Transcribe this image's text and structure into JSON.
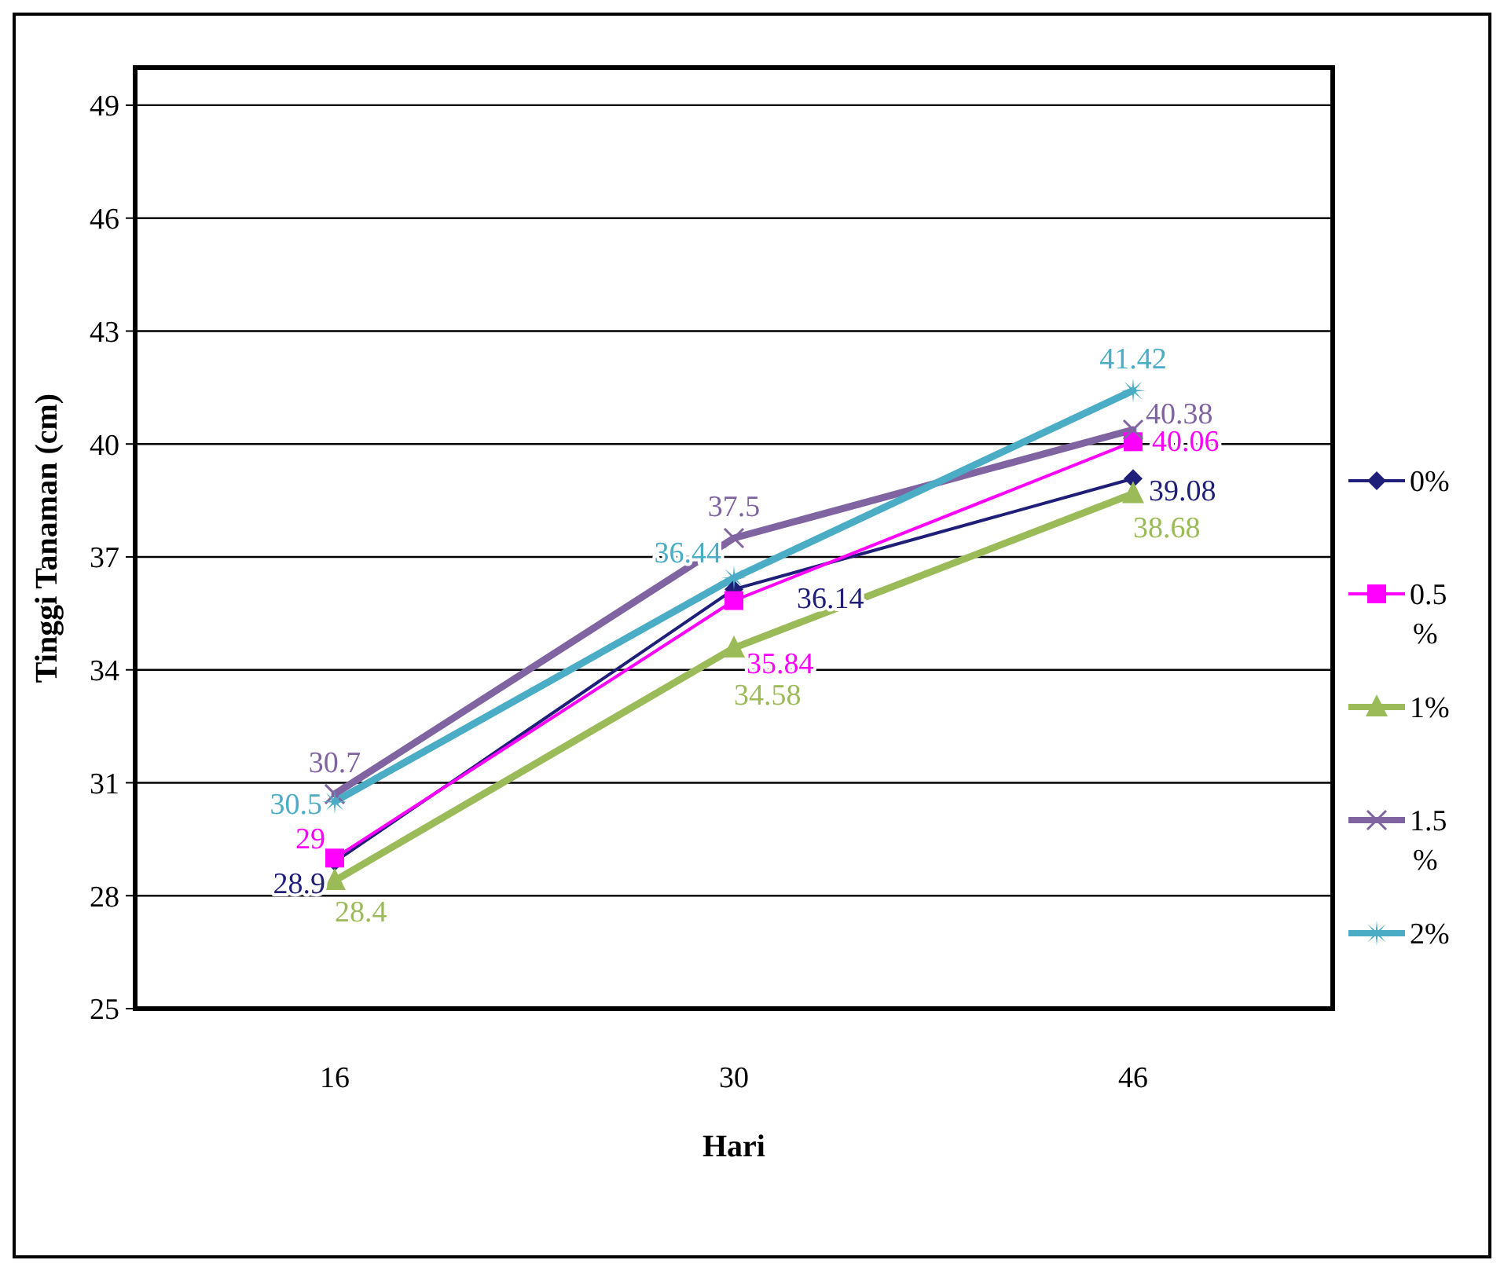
{
  "chart_data": {
    "type": "line",
    "xlabel": "Hari",
    "ylabel": "Tinggi Tanaman (cm)",
    "categories": [
      "16",
      "30",
      "46"
    ],
    "series": [
      {
        "name": "0%",
        "color": "#1f1f7a",
        "marker": "diamond",
        "values": [
          28.9,
          36.14,
          39.08
        ]
      },
      {
        "name": "0.5 %",
        "color": "#ff00ff",
        "marker": "square",
        "values": [
          29,
          35.84,
          40.06
        ]
      },
      {
        "name": "1%",
        "color": "#9bbb59",
        "marker": "triangle",
        "values": [
          28.4,
          34.58,
          38.68
        ]
      },
      {
        "name": "1.5 %",
        "color": "#8064a2",
        "marker": "cross",
        "values": [
          30.7,
          37.5,
          40.38
        ]
      },
      {
        "name": "2%",
        "color": "#4bacc6",
        "marker": "star",
        "values": [
          30.5,
          36.44,
          41.42
        ]
      }
    ],
    "ylim": [
      25,
      50
    ],
    "yticks": [
      25,
      28,
      31,
      34,
      37,
      40,
      43,
      46,
      49
    ],
    "grid": "y",
    "legend": "right",
    "data_labels": true
  }
}
